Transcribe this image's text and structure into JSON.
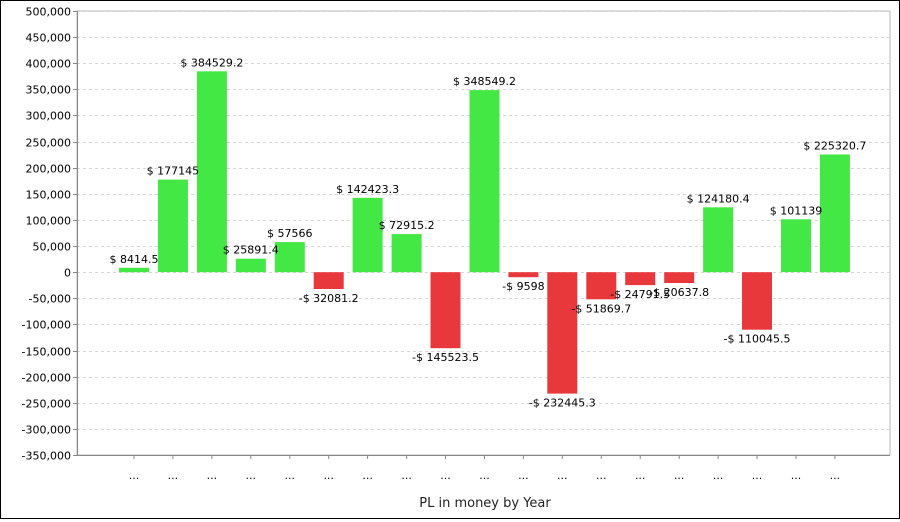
{
  "chart_data": {
    "type": "bar",
    "title": "",
    "xlabel": "PL in money by Year",
    "ylabel": "",
    "ylim": [
      -350000,
      500000
    ],
    "y_ticks": [
      500000,
      450000,
      400000,
      350000,
      300000,
      250000,
      200000,
      150000,
      100000,
      50000,
      0,
      -50000,
      -100000,
      -150000,
      -200000,
      -250000,
      -300000,
      -350000
    ],
    "y_tick_labels": [
      "500,000",
      "450,000",
      "400,000",
      "350,000",
      "300,000",
      "250,000",
      "200,000",
      "150,000",
      "100,000",
      "50,000",
      "0",
      "-50,000",
      "-100,000",
      "-150,000",
      "-200,000",
      "-250,000",
      "-300,000",
      "-350,000"
    ],
    "grid": true,
    "categories": [
      "...",
      "...",
      "...",
      "...",
      "...",
      "...",
      "...",
      "...",
      "...",
      "...",
      "...",
      "...",
      "...",
      "...",
      "...",
      "...",
      "...",
      "...",
      "..."
    ],
    "values": [
      8414.5,
      177145,
      384529.2,
      25891.4,
      57566,
      -32081.2,
      142423.3,
      72915.2,
      -145523.5,
      348549.2,
      -9598,
      -232445.3,
      -51869.7,
      -24791.5,
      -20637.8,
      124180.4,
      -110045.5,
      101139,
      225320.7
    ],
    "data_labels": [
      "$ 8414.5",
      "$ 177145",
      "$ 384529.2",
      "$ 25891.4",
      "$ 57566",
      "-$ 32081.2",
      "$ 142423.3",
      "$ 72915.2",
      "-$ 145523.5",
      "$ 348549.2",
      "-$ 9598",
      "-$ 232445.3",
      "-$ 51869.7",
      "-$ 24791.5",
      "-$ 20637.8",
      "$ 124180.4",
      "-$ 110045.5",
      "$ 101139",
      "$ 225320.7"
    ],
    "positive_color": "#44e844",
    "negative_color": "#e8383c"
  }
}
